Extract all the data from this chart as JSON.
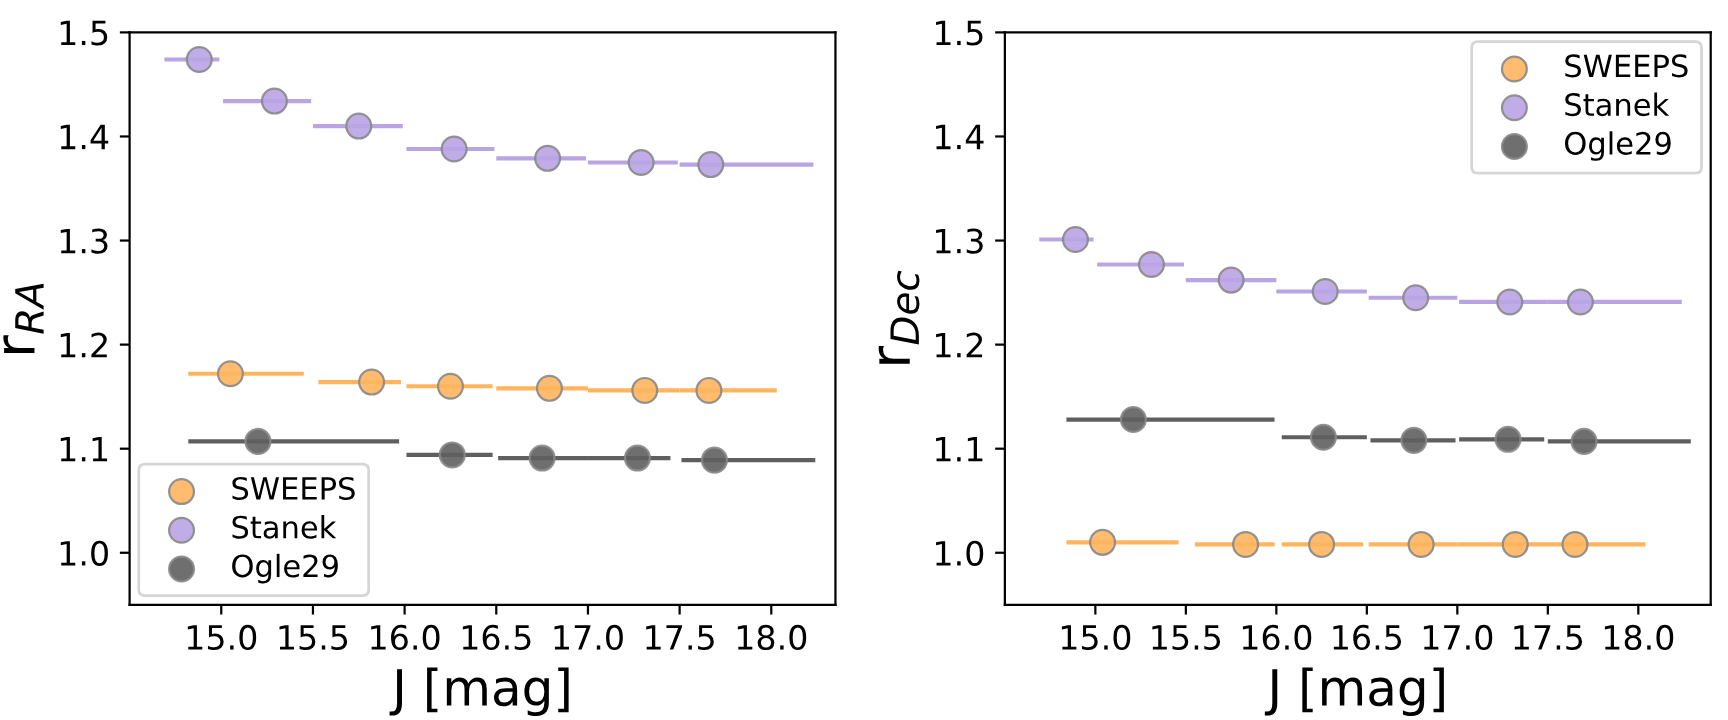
{
  "chart_data": [
    {
      "type": "scatter",
      "xlabel": "J [mag]",
      "ylabel": "r$_{RA}$",
      "xlim": [
        14.5,
        18.35
      ],
      "ylim": [
        0.95,
        1.5
      ],
      "xticks": [
        {
          "value": 15,
          "label": "15.0"
        },
        15.5,
        {
          "value": 16,
          "label": "16.0"
        },
        16.5,
        {
          "value": 17,
          "label": "17.0"
        },
        17.5,
        {
          "value": 18,
          "label": "18.0"
        }
      ],
      "yticks": [
        {
          "value": 1,
          "label": "1.0"
        },
        1.1,
        1.2,
        1.3,
        1.4,
        1.5
      ],
      "legend": "bottom left",
      "grid": false,
      "marker": "circle",
      "series": [
        {
          "name": "SWEEPS",
          "color": "#ffb45e",
          "x": [
            15.05,
            15.82,
            16.25,
            16.79,
            17.31,
            17.66
          ],
          "values": [
            1.172,
            1.164,
            1.16,
            1.158,
            1.156,
            1.156
          ],
          "xerrors": [
            [
              14.82,
              15.45
            ],
            [
              15.53,
              15.98
            ],
            [
              16.01,
              16.48
            ],
            [
              16.5,
              17.0
            ],
            [
              17.0,
              17.5
            ],
            [
              17.5,
              18.03
            ]
          ]
        },
        {
          "name": "Stanek",
          "color": "#b9a4e4",
          "x": [
            14.88,
            15.29,
            15.75,
            16.27,
            16.78,
            17.29,
            17.67
          ],
          "values": [
            1.474,
            1.434,
            1.41,
            1.388,
            1.379,
            1.375,
            1.373
          ],
          "xerrors": [
            [
              14.69,
              14.99
            ],
            [
              15.01,
              15.49
            ],
            [
              15.5,
              15.99
            ],
            [
              16.01,
              16.49
            ],
            [
              16.5,
              16.99
            ],
            [
              17.0,
              17.49
            ],
            [
              17.5,
              18.23
            ]
          ]
        },
        {
          "name": "Ogle29",
          "color": "#5f5f5f",
          "x": [
            15.2,
            16.26,
            16.75,
            17.27,
            17.69
          ],
          "values": [
            1.107,
            1.094,
            1.091,
            1.091,
            1.089
          ],
          "xerrors": [
            [
              14.82,
              15.97
            ],
            [
              16.01,
              16.48
            ],
            [
              16.51,
              17.0
            ],
            [
              17.0,
              17.45
            ],
            [
              17.51,
              18.24
            ]
          ]
        }
      ]
    },
    {
      "type": "scatter",
      "xlabel": "J [mag]",
      "ylabel": "r$_{Dec}$",
      "xlim": [
        14.5,
        18.4
      ],
      "ylim": [
        0.95,
        1.5
      ],
      "xticks": [
        {
          "value": 15,
          "label": "15.0"
        },
        15.5,
        {
          "value": 16,
          "label": "16.0"
        },
        16.5,
        {
          "value": 17,
          "label": "17.0"
        },
        17.5,
        {
          "value": 18,
          "label": "18.0"
        }
      ],
      "yticks": [
        {
          "value": 1,
          "label": "1.0"
        },
        1.1,
        1.2,
        1.3,
        1.4,
        1.5
      ],
      "legend": "top right",
      "grid": false,
      "marker": "circle",
      "series": [
        {
          "name": "SWEEPS",
          "color": "#ffb45e",
          "x": [
            15.04,
            15.83,
            16.25,
            16.8,
            17.32,
            17.65
          ],
          "values": [
            1.01,
            1.008,
            1.008,
            1.008,
            1.008,
            1.008
          ],
          "xerrors": [
            [
              14.84,
              15.46
            ],
            [
              15.55,
              15.99
            ],
            [
              16.03,
              16.48
            ],
            [
              16.51,
              17.0
            ],
            [
              17.0,
              17.54
            ],
            [
              17.54,
              18.04
            ]
          ]
        },
        {
          "name": "Stanek",
          "color": "#b9a4e4",
          "x": [
            14.89,
            15.31,
            15.75,
            16.27,
            16.77,
            17.29,
            17.68
          ],
          "values": [
            1.301,
            1.277,
            1.262,
            1.251,
            1.245,
            1.241,
            1.241
          ],
          "xerrors": [
            [
              14.69,
              14.99
            ],
            [
              15.01,
              15.49
            ],
            [
              15.5,
              16.0
            ],
            [
              16.0,
              16.5
            ],
            [
              16.51,
              17.0
            ],
            [
              17.01,
              17.5
            ],
            [
              17.5,
              18.24
            ]
          ]
        },
        {
          "name": "Ogle29",
          "color": "#5f5f5f",
          "x": [
            15.21,
            16.26,
            16.76,
            17.28,
            17.7
          ],
          "values": [
            1.128,
            1.111,
            1.108,
            1.109,
            1.107
          ],
          "xerrors": [
            [
              14.84,
              15.99
            ],
            [
              16.03,
              16.5
            ],
            [
              16.52,
              16.99
            ],
            [
              17.01,
              17.48
            ],
            [
              17.5,
              18.29
            ]
          ]
        }
      ]
    }
  ]
}
